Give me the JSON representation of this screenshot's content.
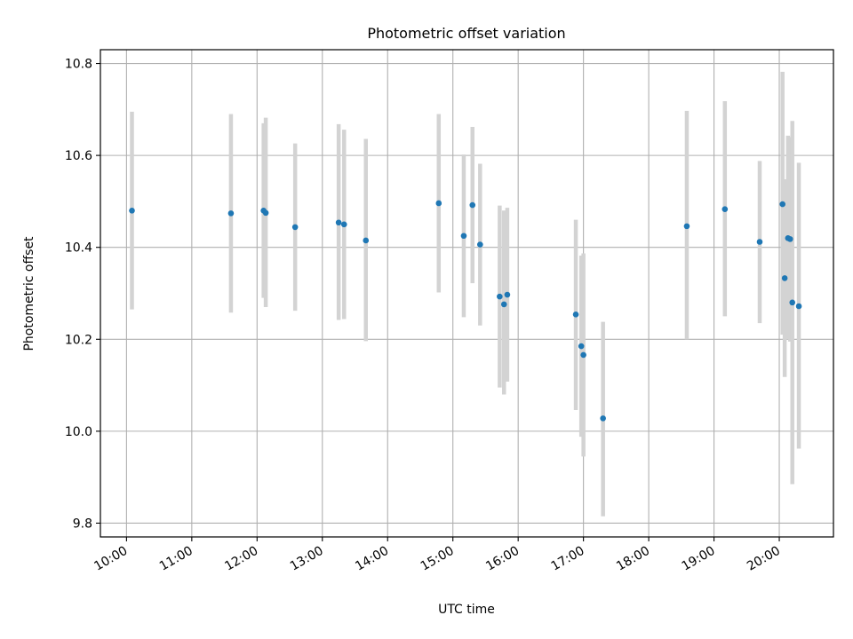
{
  "chart_data": {
    "type": "scatter",
    "title": "Photometric offset variation",
    "xlabel": "UTC time",
    "ylabel": "Photometric offset",
    "ylim": [
      9.77,
      10.83
    ],
    "xlim_hours": [
      9.6,
      20.83
    ],
    "x_ticks": [
      "10:00",
      "11:00",
      "12:00",
      "13:00",
      "14:00",
      "15:00",
      "16:00",
      "17:00",
      "18:00",
      "19:00",
      "20:00"
    ],
    "y_ticks": [
      "9.8",
      "10.0",
      "10.2",
      "10.4",
      "10.6",
      "10.8"
    ],
    "grid": true,
    "colors": {
      "point": "#1f77b4",
      "errorbar": "#d3d3d3",
      "grid": "#b0b0b0",
      "axes": "#000000"
    },
    "points": [
      {
        "time": "10:05",
        "y": 10.48,
        "ymin": 10.265,
        "ymax": 10.695
      },
      {
        "time": "11:36",
        "y": 10.474,
        "ymin": 10.258,
        "ymax": 10.69
      },
      {
        "time": "12:06",
        "y": 10.48,
        "ymin": 10.29,
        "ymax": 10.67
      },
      {
        "time": "12:08",
        "y": 10.475,
        "ymin": 10.27,
        "ymax": 10.682
      },
      {
        "time": "12:35",
        "y": 10.444,
        "ymin": 10.262,
        "ymax": 10.626
      },
      {
        "time": "13:15",
        "y": 10.454,
        "ymin": 10.242,
        "ymax": 10.668
      },
      {
        "time": "13:20",
        "y": 10.45,
        "ymin": 10.244,
        "ymax": 10.656
      },
      {
        "time": "13:40",
        "y": 10.415,
        "ymin": 10.196,
        "ymax": 10.636
      },
      {
        "time": "14:47",
        "y": 10.496,
        "ymin": 10.302,
        "ymax": 10.69
      },
      {
        "time": "15:10",
        "y": 10.425,
        "ymin": 10.248,
        "ymax": 10.602
      },
      {
        "time": "15:18",
        "y": 10.492,
        "ymin": 10.322,
        "ymax": 10.662
      },
      {
        "time": "15:25",
        "y": 10.406,
        "ymin": 10.23,
        "ymax": 10.582
      },
      {
        "time": "15:43",
        "y": 10.293,
        "ymin": 10.095,
        "ymax": 10.491
      },
      {
        "time": "15:47",
        "y": 10.276,
        "ymin": 10.08,
        "ymax": 10.48
      },
      {
        "time": "15:50",
        "y": 10.297,
        "ymin": 10.108,
        "ymax": 10.486
      },
      {
        "time": "16:53",
        "y": 10.254,
        "ymin": 10.046,
        "ymax": 10.46
      },
      {
        "time": "16:58",
        "y": 10.185,
        "ymin": 9.988,
        "ymax": 10.382
      },
      {
        "time": "17:00",
        "y": 10.166,
        "ymin": 9.945,
        "ymax": 10.387
      },
      {
        "time": "17:18",
        "y": 10.028,
        "ymin": 9.815,
        "ymax": 10.238
      },
      {
        "time": "18:35",
        "y": 10.446,
        "ymin": 10.2,
        "ymax": 10.697
      },
      {
        "time": "19:10",
        "y": 10.483,
        "ymin": 10.25,
        "ymax": 10.718
      },
      {
        "time": "19:42",
        "y": 10.412,
        "ymin": 10.235,
        "ymax": 10.588
      },
      {
        "time": "20:03",
        "y": 10.494,
        "ymin": 10.21,
        "ymax": 10.782
      },
      {
        "time": "20:05",
        "y": 10.333,
        "ymin": 10.118,
        "ymax": 10.548
      },
      {
        "time": "20:08",
        "y": 10.42,
        "ymin": 10.2,
        "ymax": 10.643
      },
      {
        "time": "20:10",
        "y": 10.418,
        "ymin": 10.195,
        "ymax": 10.64
      },
      {
        "time": "20:12",
        "y": 10.28,
        "ymin": 9.885,
        "ymax": 10.675
      },
      {
        "time": "20:18",
        "y": 10.272,
        "ymin": 9.962,
        "ymax": 10.584
      }
    ]
  }
}
